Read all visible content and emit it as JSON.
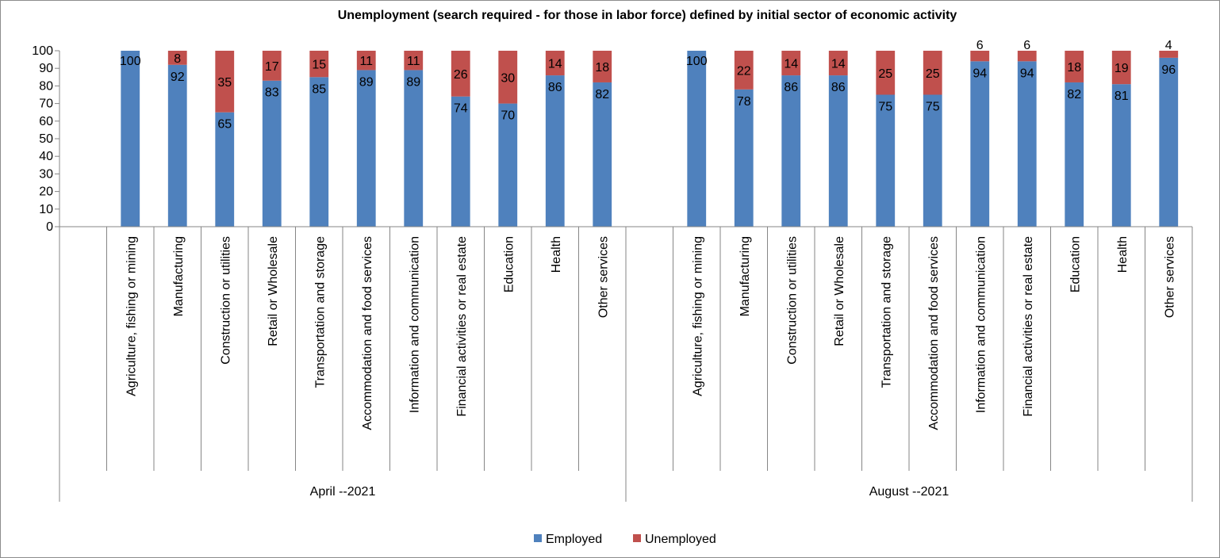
{
  "chart_data": {
    "type": "bar",
    "stacked": true,
    "title": "Unemployment (search required - for those in labor force) defined by initial sector of economic activity",
    "ylim": [
      0,
      100
    ],
    "yticks": [
      0,
      10,
      20,
      30,
      40,
      50,
      60,
      70,
      80,
      90,
      100
    ],
    "grid": false,
    "legend_position": "bottom",
    "categories": [
      "Agriculture, fishing or mining",
      "Manufacturing",
      "Construction or utilities",
      "Retail or Wholesale",
      "Transportation and storage",
      "Accommodation and food services",
      "Information and communication",
      "Financial activities or real estate",
      "Education",
      "Health",
      "Other services"
    ],
    "groups": [
      {
        "label": "April --2021",
        "series": [
          {
            "name": "Employed",
            "values": [
              100,
              92,
              65,
              83,
              85,
              89,
              89,
              74,
              70,
              86,
              82
            ]
          },
          {
            "name": "Unemployed",
            "values": [
              null,
              8,
              35,
              17,
              15,
              11,
              11,
              26,
              30,
              14,
              18
            ]
          }
        ]
      },
      {
        "label": "August --2021",
        "series": [
          {
            "name": "Employed",
            "values": [
              100,
              78,
              86,
              86,
              75,
              75,
              94,
              94,
              82,
              81,
              96
            ]
          },
          {
            "name": "Unemployed",
            "values": [
              null,
              22,
              14,
              14,
              25,
              25,
              6,
              6,
              18,
              19,
              4
            ]
          }
        ]
      }
    ],
    "legend": [
      "Employed",
      "Unemployed"
    ],
    "colors": {
      "Employed": "#4f81bd",
      "Unemployed": "#c0504d"
    }
  }
}
